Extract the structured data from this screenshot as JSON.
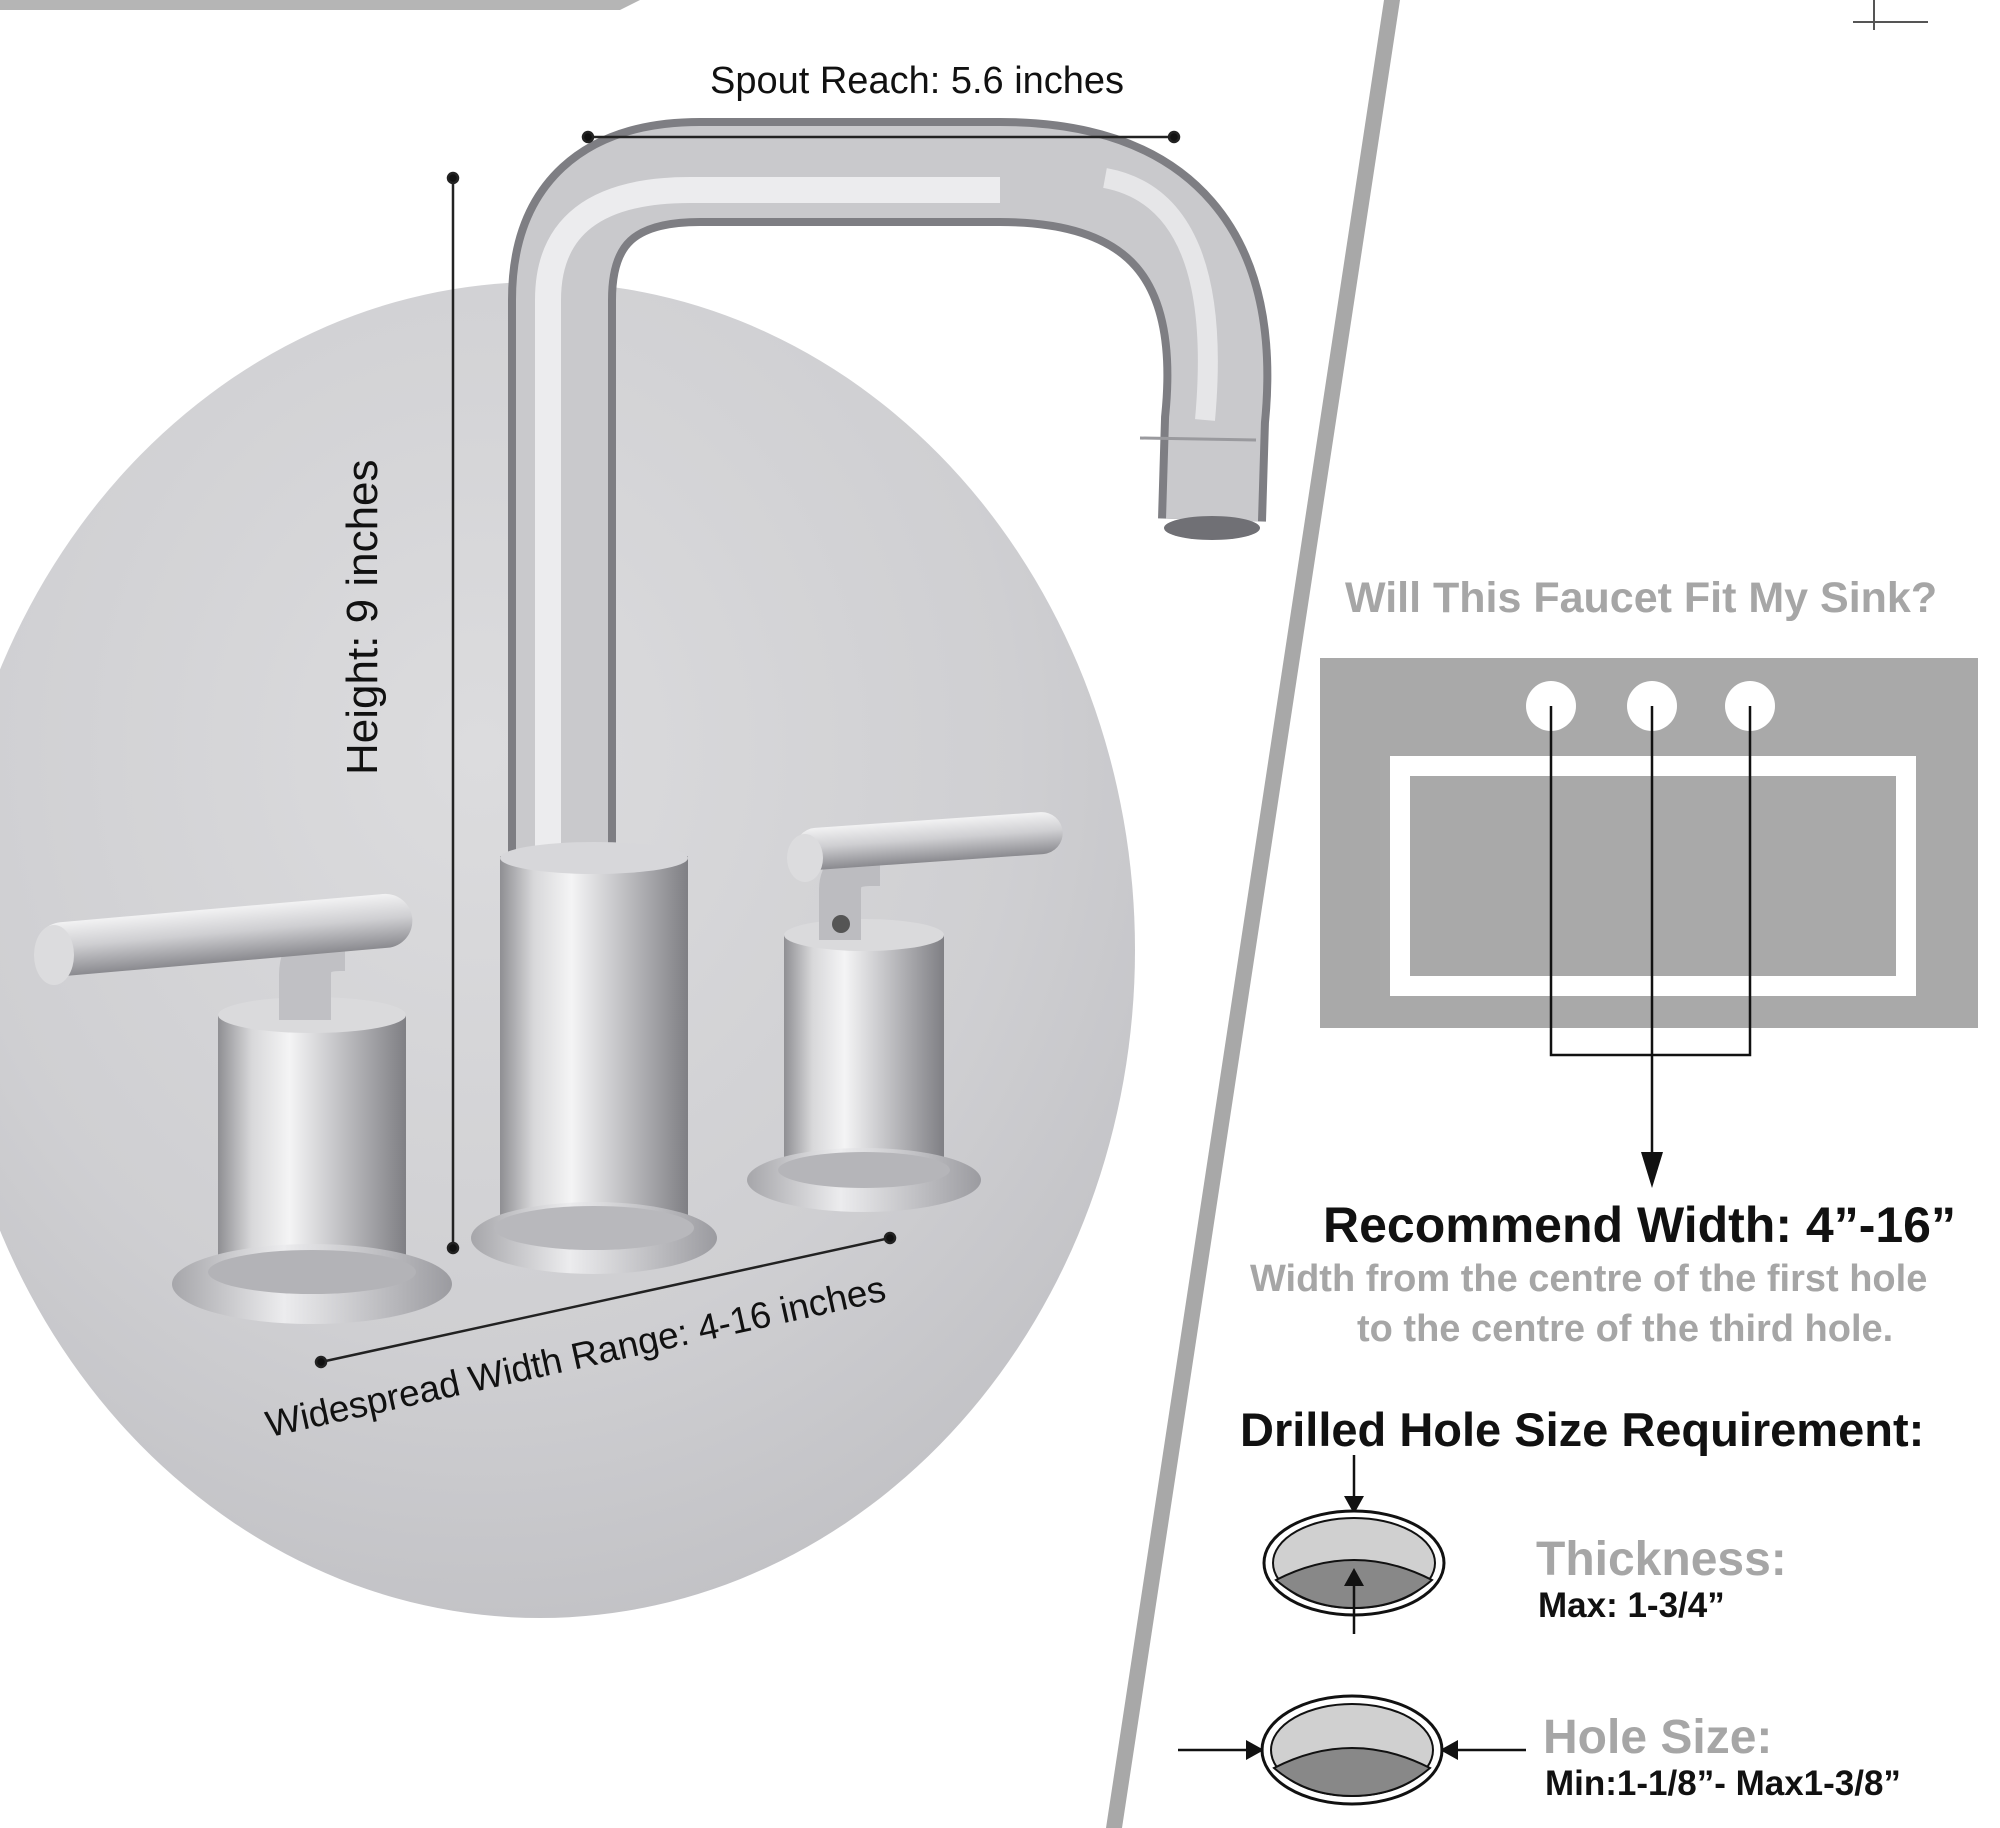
{
  "dimensions": {
    "spout_reach": "Spout Reach: 5.6 inches",
    "height": "Height: 9 inches",
    "widespread": "Widespread Width Range: 4-16 inches"
  },
  "fit_section": {
    "question": "Will This Faucet Fit My Sink?",
    "recommend_title": "Recommend Width: 4”-16”",
    "recommend_desc_line1": "Width from the centre of the first hole",
    "recommend_desc_line2": "to the centre of the third hole."
  },
  "hole_section": {
    "title": "Drilled Hole Size Requirement:",
    "thickness_label": "Thickness:",
    "thickness_value": "Max: 1-3/4”",
    "hole_label": "Hole Size:",
    "hole_value": "Min:1-1/8”- Max1-3/8”"
  },
  "colors": {
    "divider": "#a8a8a8",
    "sink_gray": "#a9a9a9",
    "muted_text": "#a6a6a6",
    "dark_text": "#111111"
  }
}
